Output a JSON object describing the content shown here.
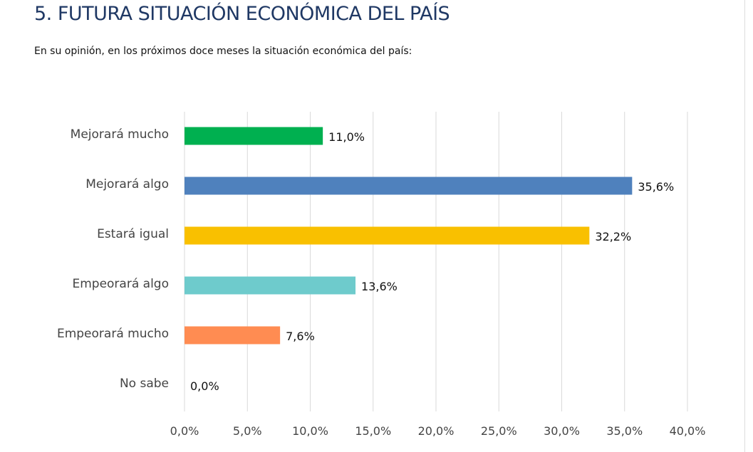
{
  "header": {
    "title": "5.  FUTURA SITUACIÓN ECONÓMICA DEL PAÍS",
    "subtitle": "En su opinión, en los próximos doce meses la situación económica del país:"
  },
  "chart_data": {
    "type": "bar",
    "orientation": "horizontal",
    "categories": [
      "Mejorará mucho",
      "Mejorará algo",
      "Estará igual",
      "Empeorará algo",
      "Empeorará mucho",
      "No sabe"
    ],
    "values": [
      11.0,
      35.6,
      32.2,
      13.6,
      7.6,
      0.0
    ],
    "data_labels": [
      "11,0%",
      "35,6%",
      "32,2%",
      "13,6%",
      "7,6%",
      "0,0%"
    ],
    "colors": [
      "#00b050",
      "#4f81bd",
      "#f9c000",
      "#6ecbcc",
      "#ff8c52",
      "#999999"
    ],
    "xlim": [
      0,
      40
    ],
    "xticks": [
      0,
      5,
      10,
      15,
      20,
      25,
      30,
      35,
      40
    ],
    "xtick_labels": [
      "0,0%",
      "5,0%",
      "10,0%",
      "15,0%",
      "20,0%",
      "25,0%",
      "30,0%",
      "35,0%",
      "40,0%"
    ],
    "grid": true,
    "legend": "none"
  }
}
